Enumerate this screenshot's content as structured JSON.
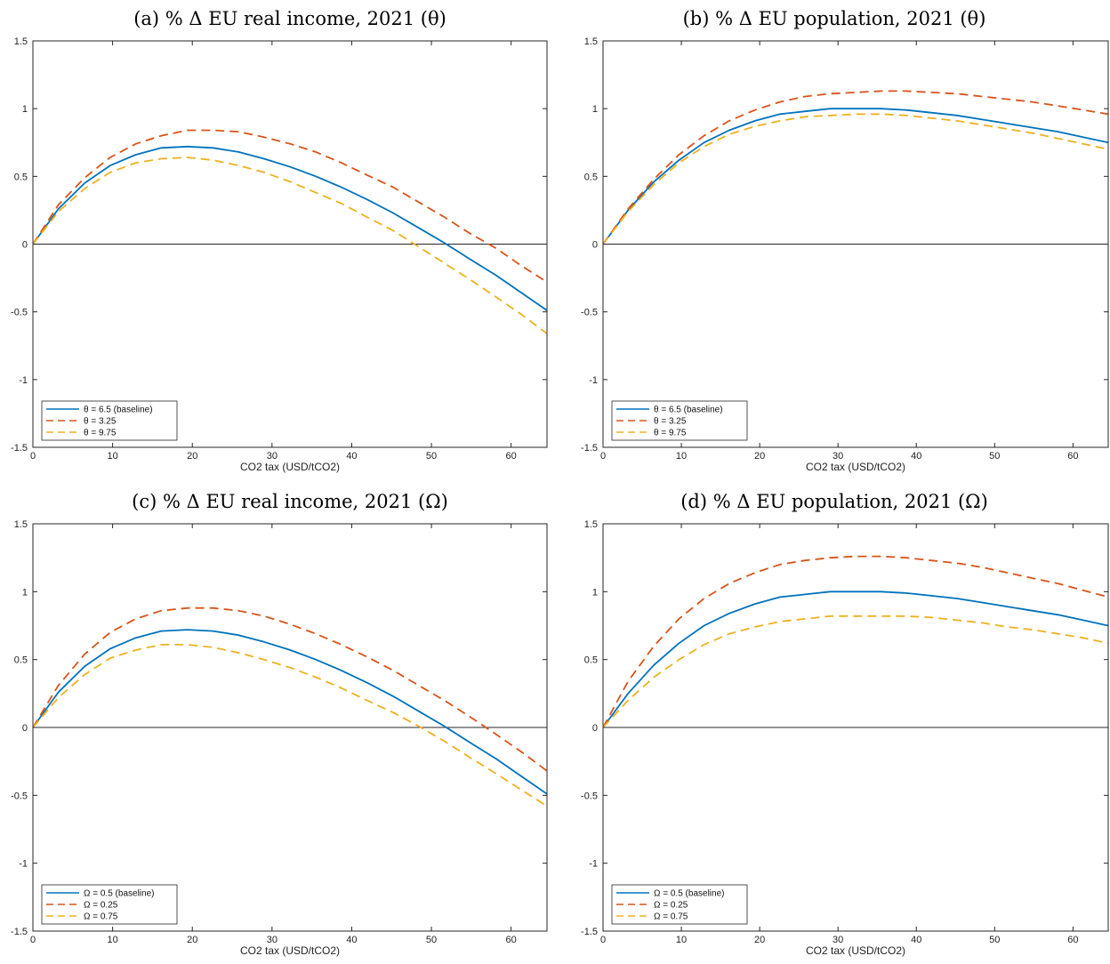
{
  "chart_data": [
    {
      "type": "line",
      "title": "(a) % Δ EU real income, 2021 (θ)",
      "xlabel": "CO2 tax (USD/tCO2)",
      "ylabel": "",
      "xlim": [
        0,
        64.5
      ],
      "ylim": [
        -1.5,
        1.5
      ],
      "xticks": [
        0,
        10,
        20,
        30,
        40,
        50,
        60
      ],
      "yticks": [
        -1.5,
        -1,
        -0.5,
        0,
        0.5,
        1,
        1.5
      ],
      "xtick_labels": [
        "0",
        "10",
        "20",
        "30",
        "40",
        "50",
        "60"
      ],
      "ytick_labels": [
        "-1.5",
        "-1",
        "-0.5",
        "0",
        "0.5",
        "1",
        "1.5"
      ],
      "zero_line": true,
      "grid": false,
      "legend_position": "bottom-left",
      "x": [
        0,
        3.2,
        6.5,
        9.7,
        12.9,
        16.1,
        19.4,
        22.6,
        25.8,
        29,
        32.3,
        35.5,
        38.7,
        41.9,
        45.2,
        48.4,
        51.6,
        54.8,
        58.1,
        61.3,
        64.5
      ],
      "series": [
        {
          "name": "θ = 6.5 (baseline)",
          "color": "#0072BD",
          "dash": "solid",
          "values": [
            0,
            0.26,
            0.45,
            0.58,
            0.66,
            0.71,
            0.72,
            0.71,
            0.68,
            0.63,
            0.57,
            0.5,
            0.42,
            0.33,
            0.23,
            0.12,
            0.01,
            -0.11,
            -0.23,
            -0.36,
            -0.49
          ]
        },
        {
          "name": "θ = 3.25",
          "color": "#D95319",
          "dash": "dashed",
          "values": [
            0,
            0.29,
            0.49,
            0.64,
            0.74,
            0.8,
            0.84,
            0.84,
            0.83,
            0.79,
            0.74,
            0.68,
            0.6,
            0.51,
            0.42,
            0.31,
            0.2,
            0.08,
            -0.03,
            -0.16,
            -0.28
          ]
        },
        {
          "name": "θ = 9.75",
          "color": "#EDB120",
          "dash": "dashed",
          "values": [
            0,
            0.24,
            0.41,
            0.53,
            0.6,
            0.63,
            0.64,
            0.62,
            0.58,
            0.53,
            0.46,
            0.38,
            0.3,
            0.2,
            0.1,
            -0.02,
            -0.14,
            -0.26,
            -0.39,
            -0.52,
            -0.66
          ]
        }
      ]
    },
    {
      "type": "line",
      "title": "(b) % Δ EU population, 2021 (θ)",
      "xlabel": "CO2 tax (USD/tCO2)",
      "ylabel": "",
      "xlim": [
        0,
        64.5
      ],
      "ylim": [
        -1.5,
        1.5
      ],
      "xticks": [
        0,
        10,
        20,
        30,
        40,
        50,
        60
      ],
      "yticks": [
        -1.5,
        -1,
        -0.5,
        0,
        0.5,
        1,
        1.5
      ],
      "xtick_labels": [
        "0",
        "10",
        "20",
        "30",
        "40",
        "50",
        "60"
      ],
      "ytick_labels": [
        "-1.5",
        "-1",
        "-0.5",
        "0",
        "0.5",
        "1",
        "1.5"
      ],
      "zero_line": true,
      "grid": false,
      "legend_position": "bottom-left",
      "x": [
        0,
        3.2,
        6.5,
        9.7,
        12.9,
        16.1,
        19.4,
        22.6,
        25.8,
        29,
        32.3,
        35.5,
        38.7,
        41.9,
        45.2,
        48.4,
        51.6,
        54.8,
        58.1,
        61.3,
        64.5
      ],
      "series": [
        {
          "name": "θ = 6.5 (baseline)",
          "color": "#0072BD",
          "dash": "solid",
          "values": [
            0,
            0.25,
            0.46,
            0.62,
            0.75,
            0.84,
            0.91,
            0.96,
            0.98,
            1.0,
            1.0,
            1.0,
            0.99,
            0.97,
            0.95,
            0.92,
            0.89,
            0.86,
            0.83,
            0.79,
            0.75
          ]
        },
        {
          "name": "θ = 3.25",
          "color": "#D95319",
          "dash": "dashed",
          "values": [
            0,
            0.26,
            0.48,
            0.66,
            0.8,
            0.91,
            0.99,
            1.05,
            1.09,
            1.11,
            1.12,
            1.13,
            1.13,
            1.12,
            1.11,
            1.09,
            1.07,
            1.05,
            1.02,
            0.99,
            0.96
          ]
        },
        {
          "name": "θ = 9.75",
          "color": "#EDB120",
          "dash": "dashed",
          "values": [
            0,
            0.24,
            0.44,
            0.6,
            0.72,
            0.81,
            0.87,
            0.91,
            0.94,
            0.95,
            0.96,
            0.96,
            0.95,
            0.93,
            0.91,
            0.88,
            0.85,
            0.82,
            0.78,
            0.74,
            0.7
          ]
        }
      ]
    },
    {
      "type": "line",
      "title": "(c) % Δ EU real income, 2021 (Ω)",
      "xlabel": "CO2 tax (USD/tCO2)",
      "ylabel": "",
      "xlim": [
        0,
        64.5
      ],
      "ylim": [
        -1.5,
        1.5
      ],
      "xticks": [
        0,
        10,
        20,
        30,
        40,
        50,
        60
      ],
      "yticks": [
        -1.5,
        -1,
        -0.5,
        0,
        0.5,
        1,
        1.5
      ],
      "xtick_labels": [
        "0",
        "10",
        "20",
        "30",
        "40",
        "50",
        "60"
      ],
      "ytick_labels": [
        "-1.5",
        "-1",
        "-0.5",
        "0",
        "0.5",
        "1",
        "1.5"
      ],
      "zero_line": true,
      "grid": false,
      "legend_position": "bottom-left",
      "x": [
        0,
        3.2,
        6.5,
        9.7,
        12.9,
        16.1,
        19.4,
        22.6,
        25.8,
        29,
        32.3,
        35.5,
        38.7,
        41.9,
        45.2,
        48.4,
        51.6,
        54.8,
        58.1,
        61.3,
        64.5
      ],
      "series": [
        {
          "name": "Ω = 0.5 (baseline)",
          "color": "#0072BD",
          "dash": "solid",
          "values": [
            0,
            0.26,
            0.45,
            0.58,
            0.66,
            0.71,
            0.72,
            0.71,
            0.68,
            0.63,
            0.57,
            0.5,
            0.42,
            0.33,
            0.23,
            0.12,
            0.01,
            -0.11,
            -0.23,
            -0.36,
            -0.49
          ]
        },
        {
          "name": "Ω = 0.25",
          "color": "#D95319",
          "dash": "dashed",
          "values": [
            0,
            0.31,
            0.54,
            0.7,
            0.8,
            0.86,
            0.88,
            0.88,
            0.86,
            0.82,
            0.76,
            0.69,
            0.61,
            0.52,
            0.42,
            0.31,
            0.2,
            0.08,
            -0.05,
            -0.18,
            -0.32
          ]
        },
        {
          "name": "Ω = 0.75",
          "color": "#EDB120",
          "dash": "dashed",
          "values": [
            0,
            0.22,
            0.39,
            0.51,
            0.57,
            0.61,
            0.61,
            0.59,
            0.55,
            0.5,
            0.44,
            0.37,
            0.29,
            0.2,
            0.11,
            0.01,
            -0.1,
            -0.22,
            -0.34,
            -0.46,
            -0.58
          ]
        }
      ]
    },
    {
      "type": "line",
      "title": "(d) % Δ EU population, 2021 (Ω)",
      "xlabel": "CO2 tax (USD/tCO2)",
      "ylabel": "",
      "xlim": [
        0,
        64.5
      ],
      "ylim": [
        -1.5,
        1.5
      ],
      "xticks": [
        0,
        10,
        20,
        30,
        40,
        50,
        60
      ],
      "yticks": [
        -1.5,
        -1,
        -0.5,
        0,
        0.5,
        1,
        1.5
      ],
      "xtick_labels": [
        "0",
        "10",
        "20",
        "30",
        "40",
        "50",
        "60"
      ],
      "ytick_labels": [
        "-1.5",
        "-1",
        "-0.5",
        "0",
        "0.5",
        "1",
        "1.5"
      ],
      "zero_line": true,
      "grid": false,
      "legend_position": "bottom-left",
      "x": [
        0,
        3.2,
        6.5,
        9.7,
        12.9,
        16.1,
        19.4,
        22.6,
        25.8,
        29,
        32.3,
        35.5,
        38.7,
        41.9,
        45.2,
        48.4,
        51.6,
        54.8,
        58.1,
        61.3,
        64.5
      ],
      "series": [
        {
          "name": "Ω = 0.5 (baseline)",
          "color": "#0072BD",
          "dash": "solid",
          "values": [
            0,
            0.25,
            0.46,
            0.62,
            0.75,
            0.84,
            0.91,
            0.96,
            0.98,
            1.0,
            1.0,
            1.0,
            0.99,
            0.97,
            0.95,
            0.92,
            0.89,
            0.86,
            0.83,
            0.79,
            0.75
          ]
        },
        {
          "name": "Ω = 0.25",
          "color": "#D95319",
          "dash": "dashed",
          "values": [
            0,
            0.34,
            0.6,
            0.8,
            0.95,
            1.06,
            1.14,
            1.2,
            1.23,
            1.25,
            1.26,
            1.26,
            1.25,
            1.23,
            1.21,
            1.18,
            1.14,
            1.1,
            1.06,
            1.01,
            0.96
          ]
        },
        {
          "name": "Ω = 0.75",
          "color": "#EDB120",
          "dash": "dashed",
          "values": [
            0,
            0.2,
            0.37,
            0.5,
            0.61,
            0.69,
            0.74,
            0.78,
            0.8,
            0.82,
            0.82,
            0.82,
            0.82,
            0.81,
            0.79,
            0.77,
            0.74,
            0.72,
            0.69,
            0.66,
            0.62
          ]
        }
      ]
    }
  ]
}
